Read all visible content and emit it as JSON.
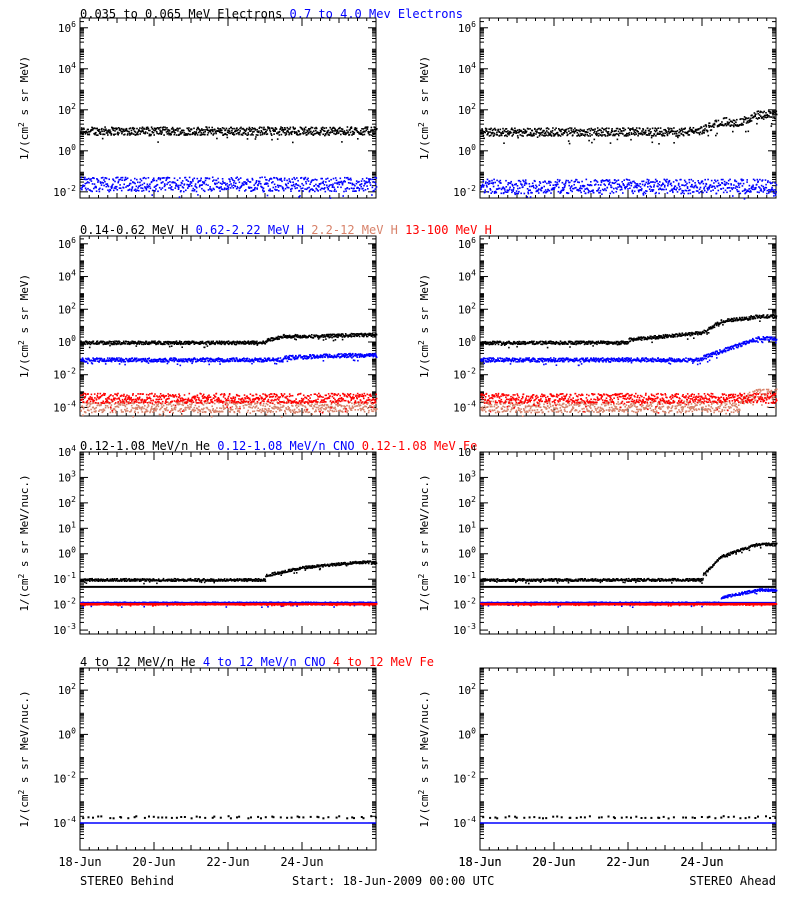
{
  "colors": {
    "black": "#000000",
    "blue": "#0000ff",
    "salmon": "#d8826a",
    "red": "#ff0000"
  },
  "footer": {
    "left": "STEREO Behind",
    "center": "Start: 18-Jun-2009 00:00 UTC",
    "right": "STEREO Ahead"
  },
  "x_ticks": [
    "18-Jun",
    "20-Jun",
    "22-Jun",
    "24-Jun"
  ],
  "chart_data": [
    {
      "type": "scatter",
      "row": 1,
      "ylabel_main": "1/(cm",
      "ylabel_sup": "2",
      "ylabel_rest": " s sr MeV)",
      "ylim": [
        0.005,
        3000000
      ],
      "ytick_exponents": [
        -2,
        0,
        2,
        4,
        6
      ],
      "yscale": "log",
      "title_parts": [
        {
          "text": "0.035 to 0.065 MeV Electrons",
          "color": "black"
        },
        {
          "text": "0.7 to 4.0 Mev Electrons",
          "color": "blue"
        }
      ],
      "panels": [
        {
          "spacecraft": "STEREO Behind",
          "series": [
            {
              "name": "0.035 to 0.065 MeV Electrons",
              "color": "black",
              "base": 10,
              "spread": 0.2,
              "rise": []
            },
            {
              "name": "0.7 to 4.0 Mev Electrons",
              "color": "blue",
              "base": 0.025,
              "spread": 0.35,
              "rise": []
            }
          ]
        },
        {
          "spacecraft": "STEREO Ahead",
          "series": [
            {
              "name": "0.035 to 0.065 MeV Electrons",
              "color": "black",
              "base": 9,
              "spread": 0.2,
              "rise": [
                [
                  5.5,
                  9
                ],
                [
                  6.0,
                  11
                ],
                [
                  6.5,
                  30
                ],
                [
                  7.0,
                  25
                ],
                [
                  7.5,
                  60
                ]
              ]
            },
            {
              "name": "0.7 to 4.0 Mev Electrons",
              "color": "blue",
              "base": 0.02,
              "spread": 0.35,
              "rise": []
            }
          ]
        }
      ]
    },
    {
      "type": "scatter",
      "row": 2,
      "ylabel_main": "1/(cm",
      "ylabel_sup": "2",
      "ylabel_rest": " s sr MeV)",
      "ylim": [
        3e-05,
        3000000
      ],
      "ytick_exponents": [
        -4,
        -2,
        0,
        2,
        4,
        6
      ],
      "yscale": "log",
      "title_parts": [
        {
          "text": "0.14-0.62 MeV H",
          "color": "black"
        },
        {
          "text": "0.62-2.22 MeV H",
          "color": "blue"
        },
        {
          "text": "2.2-12 MeV H",
          "color": "salmon"
        },
        {
          "text": "13-100 MeV H",
          "color": "red"
        }
      ],
      "panels": [
        {
          "spacecraft": "STEREO Behind",
          "series": [
            {
              "name": "0.14-0.62 MeV H",
              "color": "black",
              "base": 1.0,
              "spread": 0.1,
              "rise": [
                [
                  5.0,
                  1.3
                ],
                [
                  5.5,
                  2.5
                ],
                [
                  6.5,
                  2.5
                ],
                [
                  7.5,
                  3
                ]
              ]
            },
            {
              "name": "0.62-2.22 MeV H",
              "color": "blue",
              "base": 0.09,
              "spread": 0.12,
              "rise": [
                [
                  5.5,
                  0.12
                ],
                [
                  6.5,
                  0.15
                ],
                [
                  7.5,
                  0.17
                ]
              ]
            },
            {
              "name": "2.2-12 MeV H",
              "color": "salmon",
              "base": 0.00012,
              "spread": 0.35,
              "rise": []
            },
            {
              "name": "13-100 MeV H",
              "color": "red",
              "base": 0.0004,
              "spread": 0.3,
              "rise": []
            }
          ]
        },
        {
          "spacecraft": "STEREO Ahead",
          "series": [
            {
              "name": "0.14-0.62 MeV H",
              "color": "black",
              "base": 1.0,
              "spread": 0.1,
              "rise": [
                [
                  4.0,
                  1.5
                ],
                [
                  5.0,
                  2.5
                ],
                [
                  6.0,
                  4
                ],
                [
                  6.5,
                  20
                ],
                [
                  7.5,
                  40
                ]
              ]
            },
            {
              "name": "0.62-2.22 MeV H",
              "color": "blue",
              "base": 0.09,
              "spread": 0.12,
              "rise": [
                [
                  6.0,
                  0.12
                ],
                [
                  6.5,
                  0.3
                ],
                [
                  7.5,
                  1.8
                ]
              ]
            },
            {
              "name": "2.2-12 MeV H",
              "color": "salmon",
              "base": 0.00012,
              "spread": 0.35,
              "rise": [
                [
                  7.0,
                  0.0002
                ],
                [
                  7.5,
                  0.0008
                ]
              ]
            },
            {
              "name": "13-100 MeV H",
              "color": "red",
              "base": 0.0004,
              "spread": 0.3,
              "rise": []
            }
          ]
        }
      ]
    },
    {
      "type": "scatter",
      "row": 3,
      "ylabel_main": "1/(cm",
      "ylabel_sup": "2",
      "ylabel_rest": " s sr MeV/nuc.)",
      "ylim": [
        0.0007,
        10000
      ],
      "ytick_exponents": [
        -3,
        -2,
        -1,
        0,
        1,
        2,
        3,
        4
      ],
      "ytick_labels": [
        "10-3",
        "10-2",
        "10-1",
        "100",
        "101",
        "102",
        "103",
        "104"
      ],
      "yscale": "log",
      "title_parts": [
        {
          "text": "0.12-1.08 MeV/n He",
          "color": "black"
        },
        {
          "text": "0.12-1.08 MeV/n CNO",
          "color": "blue"
        },
        {
          "text": "0.12-1.08 MeV Fe",
          "color": "red"
        }
      ],
      "panels": [
        {
          "spacecraft": "STEREO Behind",
          "series": [
            {
              "name": "0.12-1.08 MeV/n He",
              "color": "black",
              "base": 0.1,
              "spread": 0.05,
              "rise": [
                [
                  5.0,
                  0.15
                ],
                [
                  6.0,
                  0.3
                ],
                [
                  7.5,
                  0.5
                ]
              ],
              "line": 0.05
            },
            {
              "name": "0.12-1.08 MeV/n CNO",
              "color": "blue",
              "base": 0.012,
              "spread": 0.05,
              "rise": [],
              "line": 0.012
            },
            {
              "name": "0.12-1.08 MeV Fe",
              "color": "red",
              "base": 0.011,
              "spread": 0.02,
              "rise": [],
              "line": 0.011
            }
          ]
        },
        {
          "spacecraft": "STEREO Ahead",
          "series": [
            {
              "name": "0.12-1.08 MeV/n He",
              "color": "black",
              "base": 0.1,
              "spread": 0.05,
              "rise": [
                [
                  6.0,
                  0.15
                ],
                [
                  6.5,
                  0.8
                ],
                [
                  7.0,
                  1.5
                ],
                [
                  7.5,
                  2.5
                ]
              ],
              "line": 0.05
            },
            {
              "name": "0.12-1.08 MeV/n CNO",
              "color": "blue",
              "base": 0.012,
              "spread": 0.05,
              "rise": [
                [
                  6.5,
                  0.02
                ],
                [
                  7.5,
                  0.04
                ]
              ],
              "line": 0.012
            },
            {
              "name": "0.12-1.08 MeV Fe",
              "color": "red",
              "base": 0.011,
              "spread": 0.02,
              "rise": [],
              "line": 0.011
            }
          ]
        }
      ]
    },
    {
      "type": "scatter",
      "row": 4,
      "ylabel_main": "1/(cm",
      "ylabel_sup": "2",
      "ylabel_rest": " s sr MeV/nuc.)",
      "ylim": [
        6e-06,
        1000
      ],
      "ytick_exponents": [
        -4,
        -2,
        0,
        2
      ],
      "yscale": "log",
      "title_parts": [
        {
          "text": "4 to 12 MeV/n He",
          "color": "black"
        },
        {
          "text": "4 to 12 MeV/n CNO",
          "color": "blue"
        },
        {
          "text": "4 to 12 MeV Fe",
          "color": "red"
        }
      ],
      "panels": [
        {
          "spacecraft": "STEREO Behind",
          "series": [
            {
              "name": "4 to 12 MeV/n He",
              "color": "black",
              "base": 0.0002,
              "spread": 0.05,
              "rise": [],
              "sparse": true
            },
            {
              "name": "4 to 12 MeV/n CNO",
              "color": "blue",
              "base": 0.0001,
              "spread": 0.0,
              "rise": [],
              "line": 0.0001
            }
          ]
        },
        {
          "spacecraft": "STEREO Ahead",
          "series": [
            {
              "name": "4 to 12 MeV/n He",
              "color": "black",
              "base": 0.0002,
              "spread": 0.05,
              "rise": [],
              "sparse": true
            },
            {
              "name": "4 to 12 MeV/n CNO",
              "color": "blue",
              "base": 0.0001,
              "spread": 0.0,
              "rise": [],
              "line": 0.0001
            }
          ]
        }
      ]
    }
  ]
}
